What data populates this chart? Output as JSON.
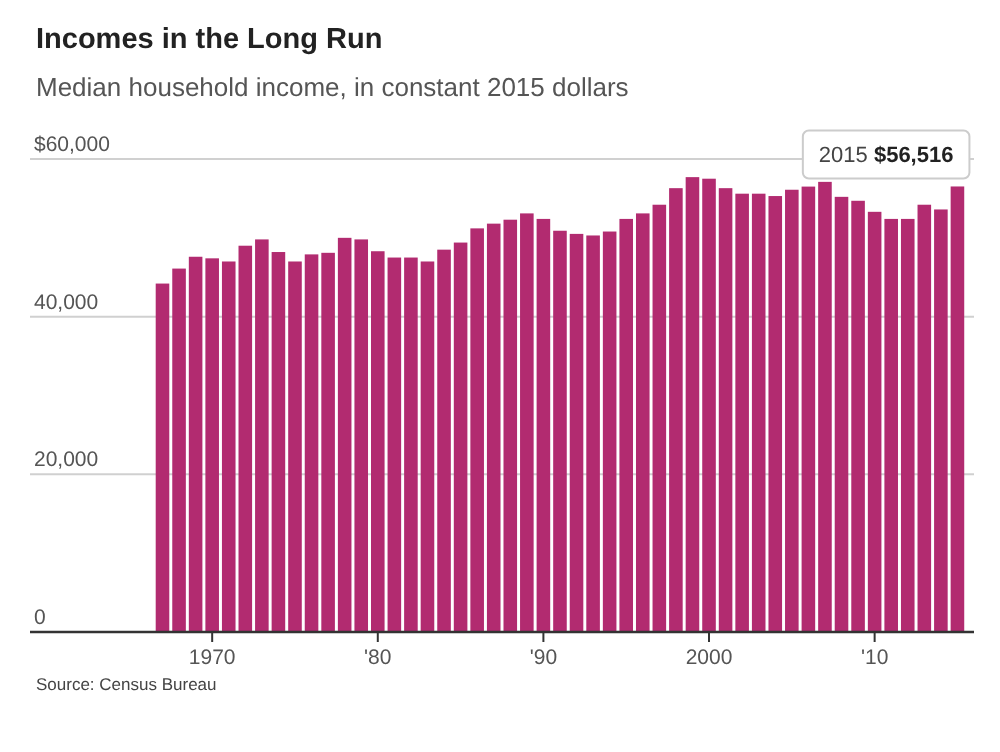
{
  "chart_data": {
    "type": "bar",
    "title": "Incomes in the Long Run",
    "subtitle": "Median household income, in constant 2015 dollars",
    "x": [
      1967,
      1968,
      1969,
      1970,
      1971,
      1972,
      1973,
      1974,
      1975,
      1976,
      1977,
      1978,
      1979,
      1980,
      1981,
      1982,
      1983,
      1984,
      1985,
      1986,
      1987,
      1988,
      1989,
      1990,
      1991,
      1992,
      1993,
      1994,
      1995,
      1996,
      1997,
      1998,
      1999,
      2000,
      2001,
      2002,
      2003,
      2004,
      2005,
      2006,
      2007,
      2008,
      2009,
      2010,
      2011,
      2012,
      2013,
      2014,
      2015
    ],
    "values": [
      44200,
      46100,
      47600,
      47400,
      47000,
      49000,
      49800,
      48200,
      47000,
      47900,
      48100,
      50000,
      49800,
      48300,
      47500,
      47500,
      47000,
      48500,
      49400,
      51200,
      51800,
      52300,
      53100,
      52400,
      50900,
      50500,
      50300,
      50800,
      52400,
      53100,
      54200,
      56300,
      57700,
      57500,
      56300,
      55600,
      55600,
      55300,
      56100,
      56500,
      57100,
      55200,
      54700,
      53300,
      52400,
      52400,
      54200,
      53600,
      56516
    ],
    "color": "#b22b70",
    "xlim": [
      1959,
      2016
    ],
    "xticks": [
      {
        "value": 1970,
        "label": "1970"
      },
      {
        "value": 1980,
        "label": "'80"
      },
      {
        "value": 1990,
        "label": "'90"
      },
      {
        "value": 2000,
        "label": "2000"
      },
      {
        "value": 2010,
        "label": "'10"
      }
    ],
    "ylim": [
      0,
      60000
    ],
    "yticks": [
      {
        "value": 0,
        "label": "0"
      },
      {
        "value": 20000,
        "label": "20,000"
      },
      {
        "value": 40000,
        "label": "40,000"
      },
      {
        "value": 60000,
        "label": "$60,000"
      }
    ],
    "grid": "y",
    "annotations": [
      {
        "text": "2015 $56,516",
        "x": 2015,
        "y": 56516
      },
      "Source: Census Bureau"
    ]
  }
}
